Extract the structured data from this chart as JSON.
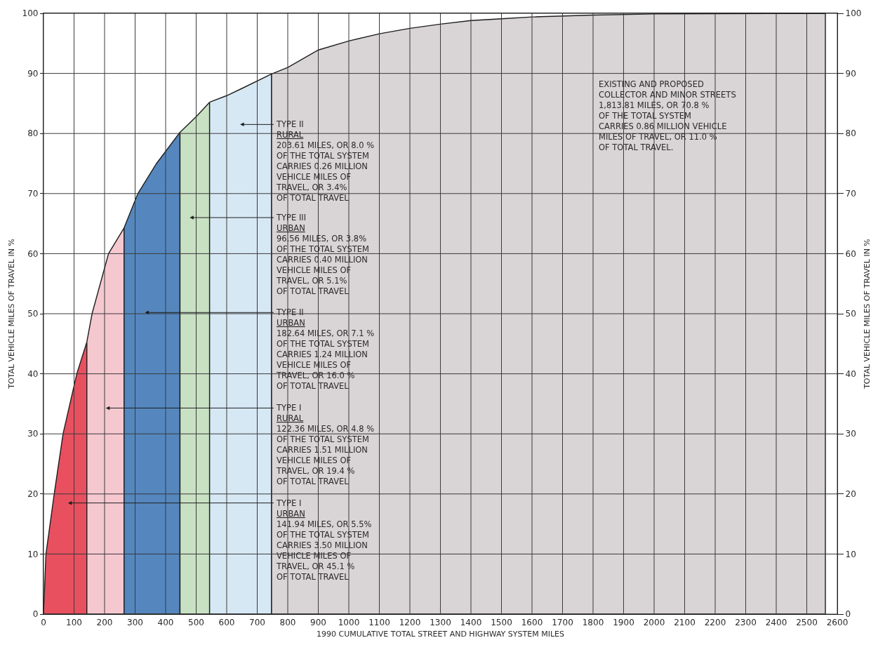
{
  "chart_data": {
    "type": "area",
    "xlabel": "1990 CUMULATIVE TOTAL STREET AND HIGHWAY SYSTEM MILES",
    "ylabel": "TOTAL VEHICLE MILES OF TRAVEL IN %",
    "y2label": "TOTAL VEHICLE MILES OF TRAVEL IN %",
    "series": [
      {
        "color": "#e8505f",
        "x": [
          0,
          8,
          35,
          64,
          109,
          142
        ],
        "values": [
          0,
          10,
          20,
          30,
          40,
          45.3
        ]
      },
      {
        "color": "#f5c8d0",
        "x": [
          142,
          159,
          213,
          264
        ],
        "values": [
          45.3,
          50,
          60,
          64.3
        ]
      },
      {
        "color": "#5587be",
        "x": [
          264,
          309,
          370,
          447
        ],
        "values": [
          64.3,
          70,
          75,
          80.2
        ]
      },
      {
        "color": "#c8e1c3",
        "x": [
          447,
          500,
          544
        ],
        "values": [
          80.2,
          82.8,
          85.2
        ]
      },
      {
        "color": "#d7e8f5",
        "x": [
          544,
          600,
          650,
          747
        ],
        "values": [
          85.2,
          86.3,
          87.5,
          89.9
        ]
      },
      {
        "color": "#d9d4d6",
        "x": [
          747,
          800,
          900,
          1000,
          1100,
          1200,
          1300,
          1400,
          1500,
          1600,
          1800,
          2000,
          2561
        ],
        "values": [
          89.9,
          91.0,
          93.9,
          95.4,
          96.6,
          97.5,
          98.2,
          98.8,
          99.1,
          99.4,
          99.7,
          99.9,
          100
        ]
      }
    ],
    "xlim": [
      0,
      2600
    ],
    "xticks": [
      0,
      100,
      200,
      300,
      400,
      500,
      600,
      700,
      800,
      900,
      1000,
      1100,
      1200,
      1300,
      1400,
      1500,
      1600,
      1700,
      1800,
      1900,
      2000,
      2100,
      2200,
      2300,
      2400,
      2500,
      2600
    ],
    "ylim": [
      0,
      100
    ],
    "yticks": [
      0,
      10,
      20,
      30,
      40,
      50,
      60,
      70,
      80,
      90,
      100
    ],
    "y2lim": [
      0,
      100
    ],
    "y2ticks": [
      0,
      10,
      20,
      30,
      40,
      50,
      60,
      70,
      80,
      90,
      100
    ],
    "grid": true,
    "annotations": [
      "TYPE II\nRURAL\n203.61 MILES, OR 8.0 %\nOF THE TOTAL SYSTEM\nCARRIES 0.26 MILLION\nVEHICLE MILES OF\nTRAVEL, OR 3.4%\nOF TOTAL TRAVEL",
      "TYPE III\nURBAN\n96.56 MILES, OR 3.8%\nOF THE TOTAL SYSTEM\nCARRIES 0.40 MILLION\nVEHICLE MILES OF\nTRAVEL, OR 5.1%\nOF TOTAL TRAVEL",
      "TYPE II\nURBAN\n182.64 MILES, OR 7.1 %\nOF THE TOTAL SYSTEM\nCARRIES 1.24 MILLION\nVEHICLE MILES OF\nTRAVEL, OR 16.0 %\nOF TOTAL TRAVEL",
      "TYPE I\nRURAL\n122.36 MILES, OR 4.8 %\nOF THE TOTAL SYSTEM\nCARRIES 1.51 MILLION\nVEHICLE MILES OF\nTRAVEL, OR 19.4 %\nOF TOTAL TRAVEL",
      "TYPE I\nURBAN\n141.94 MILES, OR 5.5%\nOF THE TOTAL SYSTEM\nCARRIES 3.50 MILLION\nVEHICLE MILES OF\nTRAVEL, OR 45.1 %\nOF TOTAL TRAVEL",
      "EXISTING AND PROPOSED\nCOLLECTOR AND MINOR STREETS\n1,813.81 MILES, OR 70.8 %\nOF THE TOTAL SYSTEM\nCARRIES 0.86 MILLION VEHICLE\nMILES OF TRAVEL, OR 11.0 %\nOF TOTAL TRAVEL."
    ]
  }
}
